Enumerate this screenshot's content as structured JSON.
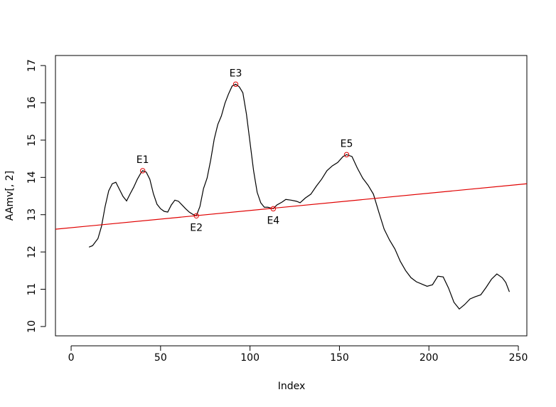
{
  "chart_data": {
    "type": "line",
    "x_label": "Index",
    "y_label": "AAmv[, 2]",
    "xlim": [
      -8.76,
      254.76
    ],
    "ylim": [
      9.75,
      17.27
    ],
    "xticks": [
      0,
      50,
      100,
      150,
      200,
      250
    ],
    "yticks": [
      10,
      11,
      12,
      13,
      14,
      15,
      16,
      17
    ],
    "series": [
      {
        "color": "#000000",
        "x": [
          10,
          12,
          15,
          17,
          19,
          21,
          23,
          25,
          27,
          29,
          31,
          33,
          35,
          37,
          39,
          40,
          42,
          44,
          46,
          48,
          50,
          52,
          54,
          56,
          58,
          60,
          62,
          64,
          66,
          68,
          70,
          72,
          74,
          76,
          78,
          80,
          82,
          84,
          86,
          88,
          90,
          92,
          94,
          96,
          98,
          100,
          102,
          104,
          106,
          108,
          110,
          113,
          115,
          118,
          120,
          123,
          126,
          128,
          131,
          134,
          137,
          140,
          143,
          146,
          149,
          152,
          154,
          157,
          160,
          163,
          166,
          169,
          172,
          175,
          178,
          181,
          184,
          187,
          190,
          193,
          196,
          199,
          202,
          205,
          208,
          211,
          214,
          217,
          220,
          223,
          226,
          229,
          232,
          235,
          238,
          241,
          243,
          245
        ],
        "values": [
          12.13,
          12.17,
          12.36,
          12.69,
          13.22,
          13.64,
          13.83,
          13.87,
          13.68,
          13.49,
          13.37,
          13.56,
          13.74,
          13.95,
          14.12,
          14.18,
          14.14,
          13.95,
          13.56,
          13.28,
          13.16,
          13.09,
          13.07,
          13.26,
          13.39,
          13.36,
          13.26,
          13.16,
          13.07,
          13.01,
          12.97,
          13.22,
          13.7,
          13.98,
          14.46,
          15.03,
          15.42,
          15.65,
          15.99,
          16.24,
          16.45,
          16.5,
          16.43,
          16.27,
          15.7,
          14.94,
          14.18,
          13.6,
          13.32,
          13.2,
          13.2,
          13.16,
          13.26,
          13.34,
          13.41,
          13.39,
          13.36,
          13.32,
          13.45,
          13.55,
          13.76,
          13.95,
          14.18,
          14.31,
          14.4,
          14.56,
          14.61,
          14.56,
          14.25,
          13.98,
          13.79,
          13.55,
          13.07,
          12.61,
          12.32,
          12.08,
          11.75,
          11.5,
          11.31,
          11.2,
          11.14,
          11.08,
          11.12,
          11.35,
          11.33,
          11.03,
          10.65,
          10.47,
          10.59,
          10.74,
          10.8,
          10.85,
          11.05,
          11.27,
          11.41,
          11.31,
          11.18,
          10.93
        ]
      }
    ],
    "trend_line": {
      "color": "#e00000",
      "x": [
        -8.76,
        254.76
      ],
      "values": [
        12.61,
        13.83
      ]
    },
    "points": {
      "color": "#e00000",
      "labels": [
        "E1",
        "E2",
        "E3",
        "E4",
        "E5"
      ],
      "x": [
        40,
        70,
        92,
        113,
        154
      ],
      "values": [
        14.18,
        12.97,
        16.5,
        13.16,
        14.61
      ],
      "label_side": [
        "above",
        "below",
        "above",
        "below",
        "above"
      ]
    }
  }
}
